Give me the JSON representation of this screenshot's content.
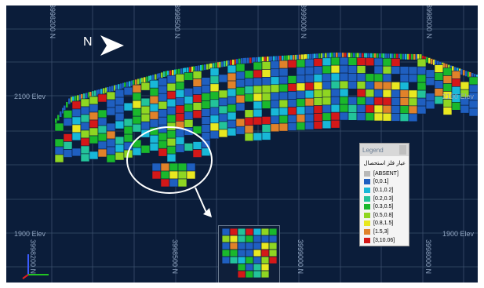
{
  "view": {
    "north_label": "N",
    "elevation_labels": {
      "elev_2100_left": "2100 Elev",
      "elev_2100_right": "2100 Elev",
      "elev_1900_left": "1900 Elev",
      "elev_1900_right": "1900 Elev"
    },
    "northing_labels": {
      "top_1": "3998200 N",
      "top_2": "3998500 N",
      "top_3": "3999000 N",
      "bottom_1": "3998200 N",
      "bottom_2": "3998500 N",
      "bottom_3": "3999000 N",
      "bottom_4": "3998000 N"
    }
  },
  "legend": {
    "title": "Legend",
    "field": "عیار فلز استحصال",
    "items": [
      {
        "label": "[ABSENT]",
        "color": "#b8b8b8"
      },
      {
        "label": "[0,0.1]",
        "color": "#1f5fc0"
      },
      {
        "label": "[0.1,0.2]",
        "color": "#18b8d8"
      },
      {
        "label": "[0.2,0.3]",
        "color": "#23c39a"
      },
      {
        "label": "[0.3,0.5]",
        "color": "#1ab82c"
      },
      {
        "label": "[0.5,0.8]",
        "color": "#8fd622"
      },
      {
        "label": "[0.8,1.5]",
        "color": "#e8e820"
      },
      {
        "label": "[1.5,3]",
        "color": "#e0822a"
      },
      {
        "label": "[3,10.06]",
        "color": "#d41818"
      }
    ]
  },
  "colors": {
    "background": "#0b1d3a",
    "grid": "#3a4f6d",
    "axis_label": "#8fa3bf",
    "highlight_circle": "#ffffff"
  }
}
